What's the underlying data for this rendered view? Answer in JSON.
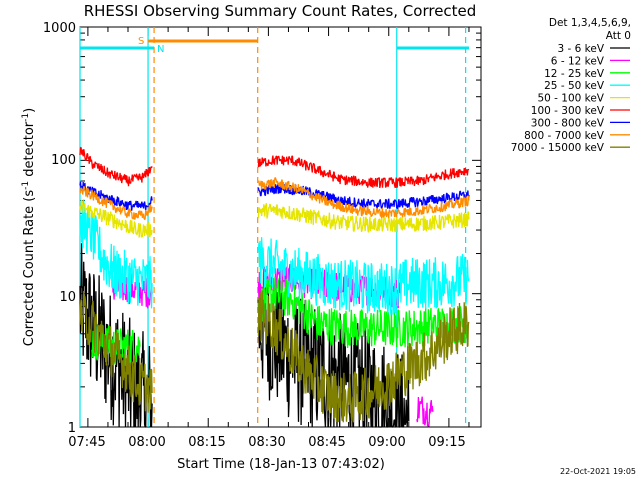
{
  "chart_data": {
    "type": "line",
    "title": "RHESSI Observing Summary Count Rates, Corrected",
    "ylabel": "Corrected Count Rate (s^-1 detector^-1)",
    "xlabel": "Start Time (18-Jan-13 07:43:02)",
    "yscale": "log",
    "ylim": [
      1,
      1000
    ],
    "xlim": [
      "07:43:02",
      "09:23:00"
    ],
    "y_ticks": [
      "1",
      "10",
      "100",
      "1000"
    ],
    "x_ticks": [
      "07:45",
      "08:00",
      "08:15",
      "08:30",
      "08:45",
      "09:00",
      "09:15"
    ],
    "legend_header": [
      "Det 1,3,4,5,6,9,",
      "Att 0"
    ],
    "footer": "22-Oct-2021 19:05",
    "gap": [
      "08:01:30",
      "08:27:30"
    ],
    "flags": [
      {
        "label": "S",
        "color": "#ff8c00",
        "start": "08:00:00",
        "end": "08:27:20"
      },
      {
        "label": "N",
        "color": "#00e5ee",
        "start": "07:43:02",
        "end": "08:01:30"
      },
      {
        "label": "",
        "color": "#00e5ee",
        "start": "09:02:00",
        "end": "09:20:00"
      }
    ],
    "vlines": [
      {
        "t": "08:01:30",
        "color": "#ff8c00",
        "style": "dashed"
      },
      {
        "t": "08:27:20",
        "color": "#ff8c00",
        "style": "dashed"
      },
      {
        "t": "07:43:02",
        "color": "#00e5ee",
        "style": "solid"
      },
      {
        "t": "08:00:00",
        "color": "#00e5ee",
        "style": "solid"
      },
      {
        "t": "09:02:00",
        "color": "#00e5ee",
        "style": "solid"
      },
      {
        "t": "09:19:10",
        "color": "#00e5ee",
        "style": "dashed"
      }
    ],
    "series": [
      {
        "name": "3 - 6 keV",
        "color": "#000000",
        "noise": 0.5,
        "segments": [
          [
            [
              "07:43:02",
              8.0
            ],
            [
              "07:47:00",
              5.0
            ],
            [
              "07:52:00",
              3.0
            ],
            [
              "07:57:00",
              1.8
            ],
            [
              "08:01:00",
              1.5
            ]
          ],
          [
            [
              "08:27:30",
              6.0
            ],
            [
              "08:30:00",
              5.0
            ],
            [
              "08:35:00",
              3.5
            ],
            [
              "08:40:00",
              2.8
            ],
            [
              "08:45:00",
              2.5
            ],
            [
              "08:52:00",
              2.0
            ],
            [
              "08:58:00",
              1.6
            ],
            [
              "09:02:00",
              1.3
            ],
            [
              "09:05:00",
              1.1
            ]
          ]
        ]
      },
      {
        "name": "6 - 12 keV",
        "color": "#ff00ff",
        "noise": 0.12,
        "segments": [
          [
            [
              "07:51:00",
              11.0
            ],
            [
              "07:56:00",
              11.0
            ],
            [
              "08:01:00",
              10.0
            ]
          ],
          [
            [
              "08:27:30",
              12.0
            ],
            [
              "08:33:00",
              13.0
            ],
            [
              "08:40:00",
              12.0
            ],
            [
              "08:50:00",
              11.0
            ],
            [
              "09:00:00",
              10.5
            ],
            [
              "09:03:00",
              10.0
            ]
          ],
          [
            [
              "09:07:00",
              1.4
            ],
            [
              "09:11:00",
              1.3
            ]
          ]
        ]
      },
      {
        "name": "12 - 25 keV",
        "color": "#00ff00",
        "noise": 0.15,
        "segments": [
          [
            [
              "07:46:00",
              4.5
            ],
            [
              "07:52:00",
              4.0
            ],
            [
              "07:58:00",
              4.0
            ]
          ],
          [
            [
              "08:27:30",
              8.0
            ],
            [
              "08:31:00",
              10.0
            ],
            [
              "08:36:00",
              9.0
            ],
            [
              "08:42:00",
              6.0
            ],
            [
              "08:50:00",
              5.5
            ],
            [
              "09:00:00",
              5.5
            ],
            [
              "09:05:00",
              5.5
            ],
            [
              "09:12:00",
              5.8
            ],
            [
              "09:20:00",
              6.0
            ]
          ]
        ]
      },
      {
        "name": "25 - 50 keV",
        "color": "#00ffff",
        "noise": 0.2,
        "segments": [
          [
            [
              "07:43:02",
              35.0
            ],
            [
              "07:46:00",
              28.0
            ],
            [
              "07:49:00",
              18.0
            ],
            [
              "07:52:00",
              14.0
            ],
            [
              "07:56:00",
              13.0
            ],
            [
              "08:01:00",
              12.0
            ]
          ],
          [
            [
              "08:27:30",
              18.0
            ],
            [
              "08:32:00",
              16.0
            ],
            [
              "08:38:00",
              14.0
            ],
            [
              "08:45:00",
              12.0
            ],
            [
              "08:55:00",
              11.0
            ],
            [
              "09:02:00",
              11.0
            ],
            [
              "09:05:00",
              12.0
            ],
            [
              "09:12:00",
              12.0
            ],
            [
              "09:20:00",
              13.0
            ]
          ]
        ]
      },
      {
        "name": "50 - 100 keV",
        "color": "#e5e500",
        "noise": 0.06,
        "segments": [
          [
            [
              "07:43:02",
              45.0
            ],
            [
              "07:47:00",
              40.0
            ],
            [
              "07:52:00",
              35.0
            ],
            [
              "07:57:00",
              30.0
            ],
            [
              "08:01:00",
              30.0
            ]
          ],
          [
            [
              "08:27:30",
              42.0
            ],
            [
              "08:33:00",
              42.0
            ],
            [
              "08:40:00",
              38.0
            ],
            [
              "08:48:00",
              34.0
            ],
            [
              "08:56:00",
              33.0
            ],
            [
              "09:04:00",
              33.0
            ],
            [
              "09:12:00",
              34.0
            ],
            [
              "09:20:00",
              36.0
            ]
          ]
        ]
      },
      {
        "name": "100 - 300 keV",
        "color": "#ff0000",
        "noise": 0.04,
        "segments": [
          [
            [
              "07:43:02",
              120.0
            ],
            [
              "07:46:00",
              95.0
            ],
            [
              "07:50:00",
              80.0
            ],
            [
              "07:55:00",
              70.0
            ],
            [
              "07:59:00",
              75.0
            ],
            [
              "08:01:00",
              90.0
            ]
          ],
          [
            [
              "08:27:30",
              95.0
            ],
            [
              "08:31:00",
              100.0
            ],
            [
              "08:36:00",
              100.0
            ],
            [
              "08:42:00",
              85.0
            ],
            [
              "08:48:00",
              72.0
            ],
            [
              "08:55:00",
              68.0
            ],
            [
              "09:02:00",
              68.0
            ],
            [
              "09:08:00",
              70.0
            ],
            [
              "09:14:00",
              78.0
            ],
            [
              "09:20:00",
              85.0
            ]
          ]
        ]
      },
      {
        "name": "300 - 800 keV",
        "color": "#0000ff",
        "noise": 0.04,
        "segments": [
          [
            [
              "07:43:02",
              65.0
            ],
            [
              "07:46:00",
              58.0
            ],
            [
              "07:50:00",
              52.0
            ],
            [
              "07:55:00",
              46.0
            ],
            [
              "07:59:00",
              45.0
            ],
            [
              "08:01:00",
              50.0
            ]
          ],
          [
            [
              "08:27:30",
              58.0
            ],
            [
              "08:33:00",
              62.0
            ],
            [
              "08:40:00",
              58.0
            ],
            [
              "08:48:00",
              50.0
            ],
            [
              "08:55:00",
              47.0
            ],
            [
              "09:02:00",
              47.0
            ],
            [
              "09:10:00",
              50.0
            ],
            [
              "09:20:00",
              55.0
            ]
          ]
        ]
      },
      {
        "name": "800 - 7000 keV",
        "color": "#ff8c00",
        "noise": 0.04,
        "segments": [
          [
            [
              "07:43:02",
              60.0
            ],
            [
              "07:46:00",
              55.0
            ],
            [
              "07:50:00",
              47.0
            ],
            [
              "07:55:00",
              40.0
            ],
            [
              "07:59:00",
              38.0
            ],
            [
              "08:01:00",
              45.0
            ]
          ],
          [
            [
              "08:27:30",
              65.0
            ],
            [
              "08:32:00",
              68.0
            ],
            [
              "08:38:00",
              60.0
            ],
            [
              "08:45:00",
              48.0
            ],
            [
              "08:52:00",
              42.0
            ],
            [
              "09:00:00",
              40.0
            ],
            [
              "09:08:00",
              42.0
            ],
            [
              "09:15:00",
              46.0
            ],
            [
              "09:20:00",
              50.0
            ]
          ]
        ]
      },
      {
        "name": "7000 - 15000 keV",
        "color": "#808000",
        "noise": 0.2,
        "segments": [
          [
            [
              "07:43:02",
              7.0
            ],
            [
              "07:46:00",
              6.0
            ],
            [
              "07:50:00",
              4.0
            ],
            [
              "07:54:00",
              3.0
            ],
            [
              "07:57:00",
              2.2
            ],
            [
              "08:00:00",
              2.0
            ],
            [
              "08:01:00",
              1.8
            ]
          ],
          [
            [
              "08:27:30",
              7.0
            ],
            [
              "08:31:00",
              6.0
            ],
            [
              "08:35:00",
              4.0
            ],
            [
              "08:40:00",
              2.5
            ],
            [
              "08:45:00",
              1.8
            ],
            [
              "08:50:00",
              1.6
            ],
            [
              "08:55:00",
              1.8
            ],
            [
              "09:00:00",
              2.2
            ],
            [
              "09:05:00",
              2.8
            ],
            [
              "09:10:00",
              3.5
            ],
            [
              "09:15:00",
              5.0
            ],
            [
              "09:20:00",
              6.0
            ]
          ]
        ]
      }
    ]
  }
}
